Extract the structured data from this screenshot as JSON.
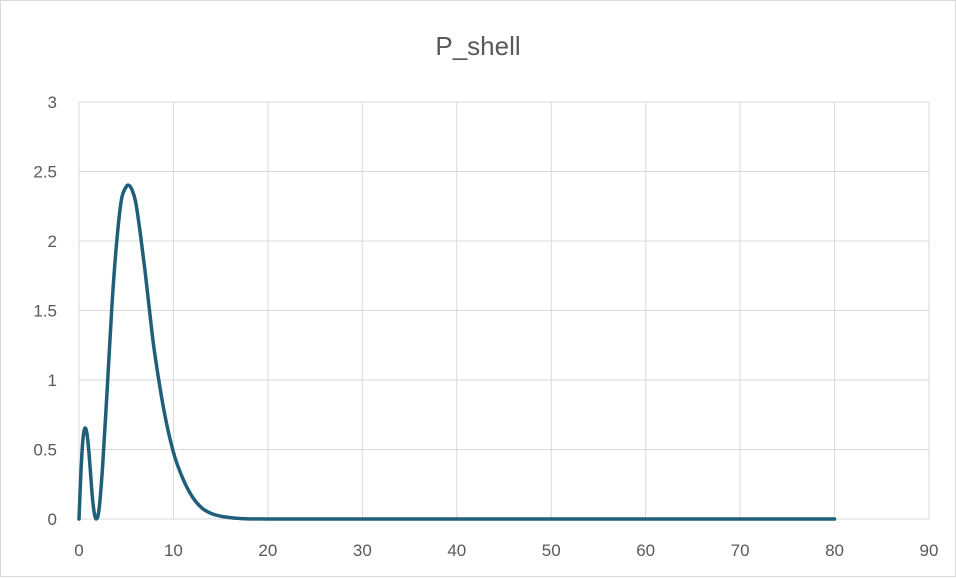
{
  "chart_data": {
    "type": "line",
    "title": "P_shell",
    "xlabel": "",
    "ylabel": "",
    "xlim": [
      0,
      90
    ],
    "ylim": [
      0,
      3
    ],
    "x_ticks": [
      0,
      10,
      20,
      30,
      40,
      50,
      60,
      70,
      80,
      90
    ],
    "y_ticks": [
      0,
      0.5,
      1,
      1.5,
      2,
      2.5,
      3
    ],
    "grid": true,
    "legend": "none",
    "colors": {
      "series": "#1f5f7a",
      "grid": "#d9d9d9",
      "text": "#595959"
    },
    "series": [
      {
        "x": [
          0,
          0.2,
          0.4,
          0.6,
          0.8,
          1.0,
          1.2,
          1.4,
          1.6,
          1.8,
          2.0,
          2.2,
          2.5,
          3.0,
          3.5,
          4.0,
          4.5,
          5.0,
          5.3,
          5.6,
          6.0,
          6.5,
          7.0,
          7.5,
          8.0,
          9.0,
          10.0,
          11.0,
          12.0,
          13.0,
          14.0,
          15.0,
          16.0,
          17.0,
          18.0,
          20.0,
          25.0,
          30.0,
          40.0,
          50.0,
          60.0,
          70.0,
          80.0
        ],
        "values": [
          0,
          0.33,
          0.56,
          0.65,
          0.63,
          0.52,
          0.35,
          0.17,
          0.05,
          0.0,
          0.02,
          0.12,
          0.38,
          0.95,
          1.55,
          2.0,
          2.3,
          2.39,
          2.4,
          2.37,
          2.28,
          2.05,
          1.78,
          1.48,
          1.2,
          0.78,
          0.48,
          0.29,
          0.16,
          0.08,
          0.04,
          0.02,
          0.01,
          0.004,
          0.001,
          0,
          0,
          0,
          0,
          0,
          0,
          0,
          0
        ]
      }
    ]
  }
}
